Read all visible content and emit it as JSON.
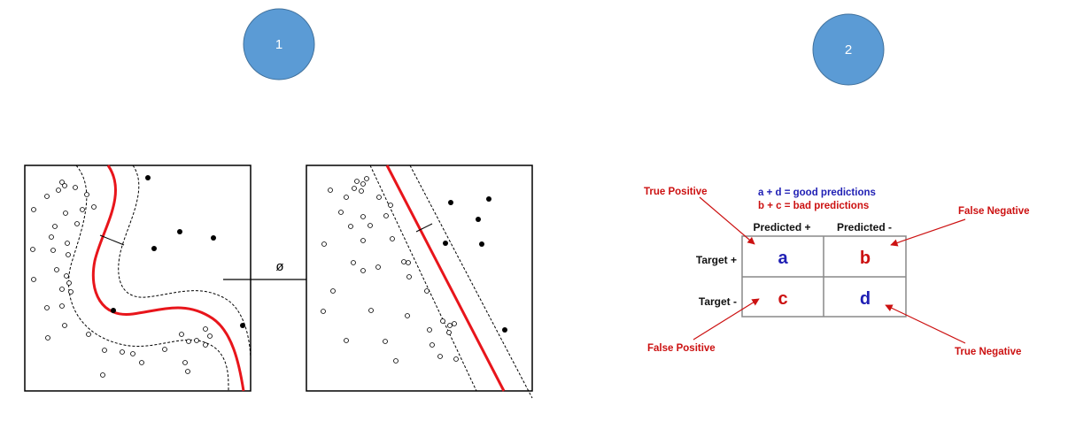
{
  "badges": [
    {
      "label": "1",
      "color": "#5b9bd5"
    },
    {
      "label": "2",
      "color": "#5b9bd5"
    }
  ],
  "kernel_mapping": {
    "arrow_label": "ø",
    "boundary_color": "#e8151b"
  },
  "confusion_matrix": {
    "good_line": "a + d = good predictions",
    "bad_line": "b + c = bad predictions",
    "good_color": "#1f1fb4",
    "bad_color": "#cc1111",
    "col_headers": [
      "Predicted +",
      "Predicted -"
    ],
    "row_headers": [
      "Target +",
      "Target -"
    ],
    "cells": [
      {
        "label": "a",
        "color": "#1f1fb4"
      },
      {
        "label": "b",
        "color": "#cc1111"
      },
      {
        "label": "c",
        "color": "#cc1111"
      },
      {
        "label": "d",
        "color": "#1f1fb4"
      }
    ],
    "annotations": {
      "true_positive": "True Positive",
      "false_negative": "False Negative",
      "false_positive": "False Positive",
      "true_negative": "True Negative"
    }
  }
}
